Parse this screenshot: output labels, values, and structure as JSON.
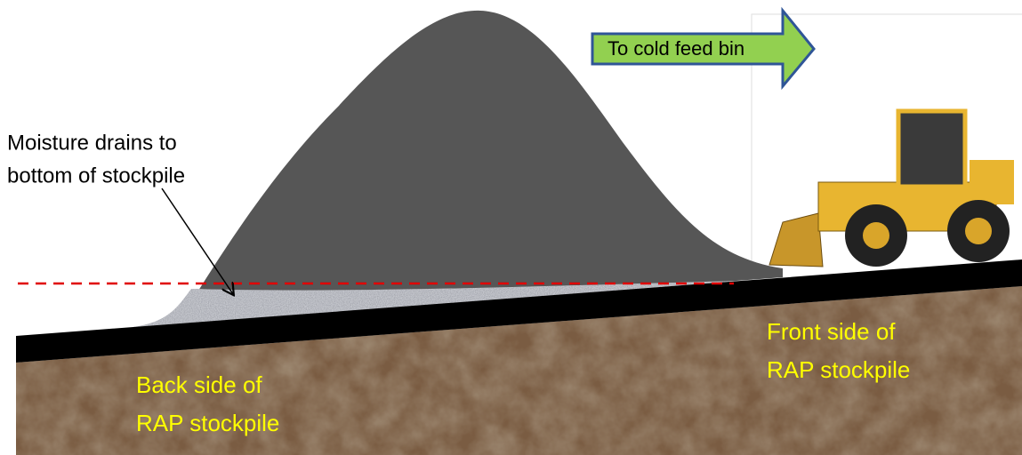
{
  "arrow": {
    "label": "To cold feed bin"
  },
  "annotation": {
    "lines": [
      "Moisture drains to",
      "bottom of stockpile"
    ]
  },
  "labels": [
    {
      "lines": [
        "Back side of",
        "RAP stockpile"
      ]
    },
    {
      "lines": [
        "Front side of",
        "RAP stockpile"
      ]
    }
  ]
}
